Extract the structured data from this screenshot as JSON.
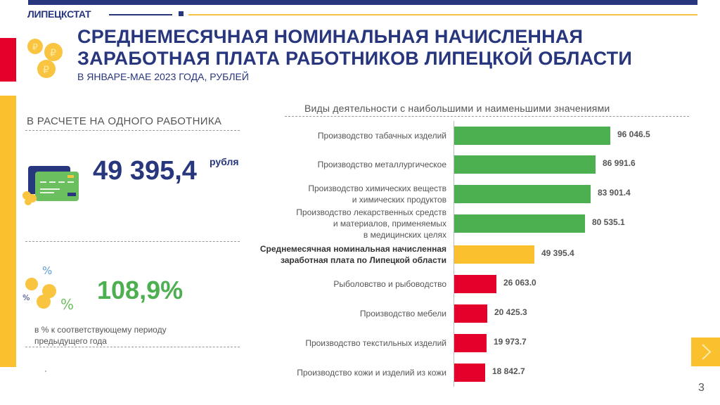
{
  "header": {
    "brand": "ЛИПЕЦКСТАТ",
    "title_line1": "СРЕДНЕМЕСЯЧНАЯ НОМИНАЛЬНАЯ НАЧИСЛЕННАЯ",
    "title_line2": "ЗАРАБОТНАЯ ПЛАТА РАБОТНИКОВ ЛИПЕЦКОЙ ОБЛАСТИ",
    "subtitle": "В ЯНВАРЕ-МАЕ  2023 ГОДА,  РУБЛЕЙ"
  },
  "left_panel": {
    "section_title": "В РАСЧЕТЕ НА ОДНОГО РАБОТНИКА",
    "wage_value": "49 395,4",
    "wage_unit": "рубля",
    "growth_value": "108,9%",
    "growth_note_line1": "в % к соответствующему  периоду",
    "growth_note_line2": "предыдущего  года"
  },
  "colors": {
    "brand_blue": "#27367d",
    "high_green": "#4caf50",
    "average_yellow": "#fbc02d",
    "low_red": "#e4002b"
  },
  "chart_data": {
    "type": "bar",
    "orientation": "horizontal",
    "title": "Виды деятельности с наибольшими и наименьшими значениями",
    "xlabel": "",
    "ylabel": "",
    "grid": false,
    "categories": [
      "Производство табачных изделий",
      "Производство металлургическое",
      "Производство химических веществ и химических продуктов",
      "Производство лекарственных средств и материалов, применяемых в медицинских целях",
      "Среднемесячная номинальная начисленная заработная плата по Липецкой области",
      "Рыболовство и рыбоводство",
      "Производство мебели",
      "Производство текстильных изделий",
      "Производство кожи и изделий из кожи"
    ],
    "values": [
      96046.5,
      86991.6,
      83901.4,
      80535.1,
      49395.4,
      26063.0,
      20425.3,
      19973.7,
      18842.7
    ],
    "value_labels": [
      "96 046.5",
      "86 991.6",
      "83 901.4",
      "80 535.1",
      "49 395.4",
      "26 063.0",
      "20 425.3",
      "19 973.7",
      "18 842.7"
    ],
    "bar_colors": [
      "#4caf50",
      "#4caf50",
      "#4caf50",
      "#4caf50",
      "#fbc02d",
      "#e4002b",
      "#e4002b",
      "#e4002b",
      "#e4002b"
    ],
    "label_lines": [
      [
        "Производство табачных изделий"
      ],
      [
        "Производство металлургическое"
      ],
      [
        "Производство химических  веществ",
        "и химических  продуктов"
      ],
      [
        "Производство лекарственных  средств",
        "и материалов,  применяемых",
        "в медицинских  целях"
      ],
      [
        "Среднемесячная номинальная начисленная",
        "заработная плата по Липецкой области"
      ],
      [
        "Рыболовство и рыбоводство"
      ],
      [
        "Производство мебели"
      ],
      [
        "Производство текстильных  изделий"
      ],
      [
        "Производство кожи и изделий  из кожи"
      ]
    ]
  },
  "footer": {
    "next_icon": "chevron-right-icon",
    "page_number": "3"
  }
}
